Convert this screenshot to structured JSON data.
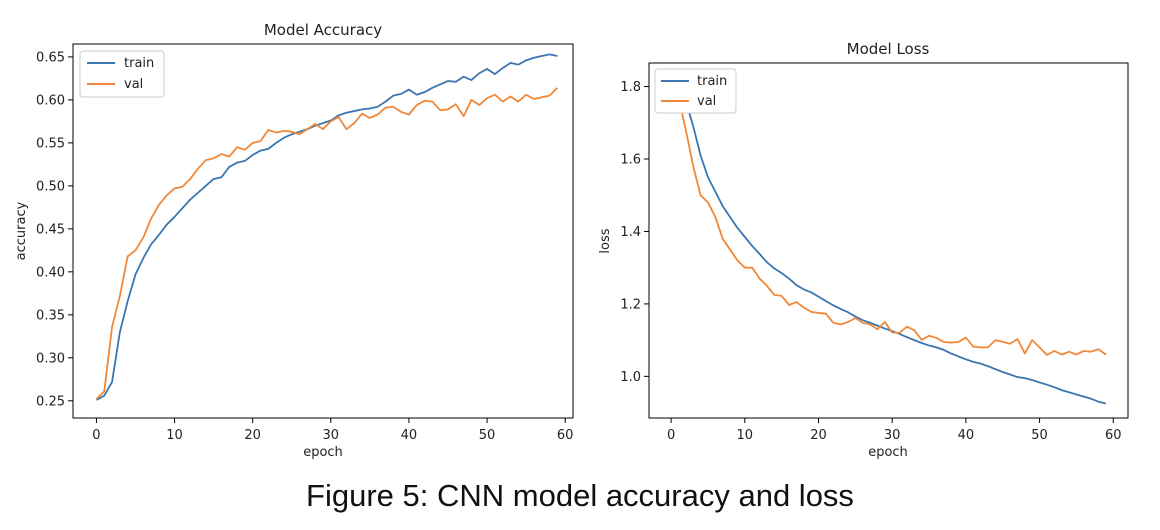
{
  "figure": {
    "caption": "Figure 5: CNN model accuracy and loss"
  },
  "colors": {
    "train": "#3b76b0",
    "val": "#f0883a"
  },
  "chart_data": [
    {
      "type": "line",
      "title": "Model Accuracy",
      "xlabel": "epoch",
      "ylabel": "accuracy",
      "xlim": [
        -3,
        61
      ],
      "ylim": [
        0.23,
        0.665
      ],
      "xticks": [
        0,
        10,
        20,
        30,
        40,
        50,
        60
      ],
      "yticks": [
        0.25,
        0.3,
        0.35,
        0.4,
        0.45,
        0.5,
        0.55,
        0.6,
        0.65
      ],
      "ytick_labels": [
        "0.25",
        "0.30",
        "0.35",
        "0.40",
        "0.45",
        "0.50",
        "0.55",
        "0.60",
        "0.65"
      ],
      "grid": false,
      "legend": "top-left",
      "series": [
        {
          "name": "train",
          "color": "#3b76b0",
          "values": [
            0.251,
            0.256,
            0.272,
            0.33,
            0.366,
            0.397,
            0.416,
            0.432,
            0.443,
            0.455,
            0.464,
            0.474,
            0.484,
            0.492,
            0.5,
            0.508,
            0.51,
            0.522,
            0.527,
            0.529,
            0.536,
            0.541,
            0.543,
            0.55,
            0.556,
            0.56,
            0.563,
            0.566,
            0.57,
            0.573,
            0.576,
            0.582,
            0.585,
            0.587,
            0.589,
            0.59,
            0.592,
            0.598,
            0.605,
            0.607,
            0.612,
            0.606,
            0.609,
            0.614,
            0.618,
            0.622,
            0.621,
            0.627,
            0.623,
            0.631,
            0.636,
            0.63,
            0.637,
            0.643,
            0.641,
            0.646,
            0.649,
            0.651,
            0.653,
            0.651
          ]
        },
        {
          "name": "val",
          "color": "#f0883a",
          "values": [
            0.252,
            0.261,
            0.336,
            0.372,
            0.418,
            0.425,
            0.44,
            0.462,
            0.478,
            0.489,
            0.497,
            0.499,
            0.508,
            0.52,
            0.53,
            0.532,
            0.537,
            0.534,
            0.545,
            0.542,
            0.55,
            0.552,
            0.565,
            0.562,
            0.564,
            0.563,
            0.56,
            0.566,
            0.572,
            0.566,
            0.575,
            0.58,
            0.566,
            0.573,
            0.584,
            0.579,
            0.583,
            0.591,
            0.592,
            0.586,
            0.583,
            0.594,
            0.599,
            0.598,
            0.588,
            0.589,
            0.595,
            0.581,
            0.6,
            0.594,
            0.602,
            0.606,
            0.598,
            0.604,
            0.598,
            0.606,
            0.601,
            0.603,
            0.605,
            0.614
          ]
        }
      ]
    },
    {
      "type": "line",
      "title": "Model Loss",
      "xlabel": "epoch",
      "ylabel": "loss",
      "xlim": [
        -3,
        62
      ],
      "ylim": [
        0.885,
        1.865
      ],
      "xticks": [
        0,
        10,
        20,
        30,
        40,
        50,
        60
      ],
      "yticks": [
        1.0,
        1.2,
        1.4,
        1.6,
        1.8
      ],
      "ytick_labels": [
        "1.0",
        "1.2",
        "1.4",
        "1.6",
        "1.8"
      ],
      "grid": false,
      "legend": "top-left",
      "series": [
        {
          "name": "train",
          "color": "#3b76b0",
          "values": [
            1.81,
            1.79,
            1.76,
            1.69,
            1.61,
            1.55,
            1.51,
            1.47,
            1.44,
            1.41,
            1.385,
            1.36,
            1.338,
            1.315,
            1.298,
            1.285,
            1.27,
            1.252,
            1.24,
            1.232,
            1.22,
            1.208,
            1.196,
            1.186,
            1.177,
            1.165,
            1.155,
            1.148,
            1.14,
            1.132,
            1.125,
            1.117,
            1.108,
            1.1,
            1.092,
            1.085,
            1.08,
            1.073,
            1.063,
            1.055,
            1.047,
            1.04,
            1.035,
            1.028,
            1.02,
            1.012,
            1.005,
            0.998,
            0.995,
            0.99,
            0.983,
            0.977,
            0.97,
            0.962,
            0.956,
            0.95,
            0.944,
            0.938,
            0.93,
            0.925
          ]
        },
        {
          "name": "val",
          "color": "#f0883a",
          "values": [
            1.8,
            1.77,
            1.68,
            1.58,
            1.5,
            1.48,
            1.44,
            1.38,
            1.35,
            1.32,
            1.3,
            1.3,
            1.27,
            1.25,
            1.225,
            1.222,
            1.197,
            1.205,
            1.19,
            1.178,
            1.175,
            1.173,
            1.148,
            1.143,
            1.15,
            1.161,
            1.148,
            1.143,
            1.13,
            1.15,
            1.121,
            1.12,
            1.137,
            1.127,
            1.101,
            1.112,
            1.106,
            1.095,
            1.093,
            1.095,
            1.107,
            1.082,
            1.08,
            1.08,
            1.1,
            1.095,
            1.09,
            1.103,
            1.063,
            1.1,
            1.08,
            1.059,
            1.07,
            1.06,
            1.068,
            1.06,
            1.07,
            1.068,
            1.075,
            1.06
          ]
        }
      ]
    }
  ]
}
